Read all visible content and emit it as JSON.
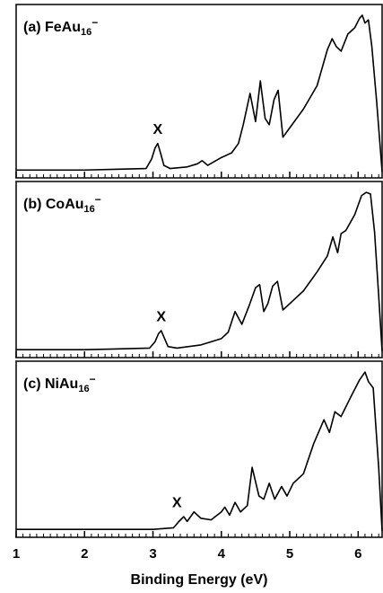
{
  "chart_data": [
    {
      "type": "line",
      "label": "(a) FeAu",
      "label_sub": "16",
      "label_sup": "−",
      "annotation": {
        "text": "X",
        "x": 3.07,
        "y": 0.24
      },
      "xlim": [
        1,
        6.35
      ],
      "ylim": [
        0,
        1.04
      ],
      "series": [
        {
          "color": "#000000",
          "x": [
            1.0,
            2.0,
            2.9,
            2.98,
            3.03,
            3.07,
            3.11,
            3.16,
            3.25,
            3.5,
            3.65,
            3.72,
            3.8,
            4.0,
            4.15,
            4.25,
            4.32,
            4.42,
            4.5,
            4.57,
            4.64,
            4.7,
            4.77,
            4.83,
            4.9,
            5.0,
            5.2,
            5.4,
            5.55,
            5.62,
            5.68,
            5.75,
            5.85,
            5.95,
            6.02,
            6.06,
            6.1,
            6.15,
            6.2,
            6.27,
            6.35
          ],
          "values": [
            0.01,
            0.01,
            0.02,
            0.08,
            0.15,
            0.18,
            0.12,
            0.04,
            0.02,
            0.03,
            0.05,
            0.07,
            0.04,
            0.09,
            0.12,
            0.18,
            0.3,
            0.5,
            0.32,
            0.58,
            0.34,
            0.3,
            0.46,
            0.52,
            0.22,
            0.28,
            0.4,
            0.55,
            0.78,
            0.85,
            0.8,
            0.77,
            0.88,
            0.92,
            0.98,
            1.0,
            0.95,
            0.97,
            0.8,
            0.45,
            0.0
          ]
        }
      ]
    },
    {
      "type": "line",
      "label": "(b) CoAu",
      "label_sub": "16",
      "label_sup": "−",
      "annotation": {
        "text": "X",
        "x": 3.12,
        "y": 0.19
      },
      "xlim": [
        1,
        6.35
      ],
      "ylim": [
        0,
        1.04
      ],
      "series": [
        {
          "color": "#000000",
          "x": [
            1.0,
            2.0,
            2.95,
            3.03,
            3.08,
            3.12,
            3.16,
            3.22,
            3.35,
            3.7,
            4.0,
            4.1,
            4.2,
            4.3,
            4.4,
            4.5,
            4.56,
            4.62,
            4.68,
            4.75,
            4.82,
            4.9,
            5.0,
            5.2,
            5.4,
            5.55,
            5.63,
            5.7,
            5.75,
            5.82,
            5.95,
            6.05,
            6.12,
            6.18,
            6.24,
            6.3,
            6.35
          ],
          "values": [
            0.01,
            0.01,
            0.02,
            0.06,
            0.11,
            0.13,
            0.09,
            0.03,
            0.02,
            0.04,
            0.08,
            0.12,
            0.25,
            0.17,
            0.28,
            0.4,
            0.42,
            0.25,
            0.3,
            0.41,
            0.44,
            0.26,
            0.3,
            0.38,
            0.5,
            0.6,
            0.72,
            0.62,
            0.74,
            0.76,
            0.86,
            0.98,
            1.0,
            0.99,
            0.75,
            0.35,
            0.0
          ]
        }
      ]
    },
    {
      "type": "line",
      "label": "(c) NiAu",
      "label_sub": "16",
      "label_sup": "−",
      "annotation": {
        "text": "X",
        "x": 3.35,
        "y": 0.15
      },
      "xlim": [
        1,
        6.35
      ],
      "ylim": [
        0,
        1.04
      ],
      "xlabel": "Binding Energy (eV)",
      "xticks": [
        1,
        2,
        3,
        4,
        5,
        6
      ],
      "minor_xticks": [
        1.1,
        1.2,
        1.3,
        1.4,
        1.5,
        1.6,
        1.7,
        1.8,
        1.9,
        2.1,
        2.2,
        2.3,
        2.4,
        2.5,
        2.6,
        2.7,
        2.8,
        2.9,
        3.1,
        3.2,
        3.3,
        3.4,
        3.5,
        3.6,
        3.7,
        3.8,
        3.9,
        4.1,
        4.2,
        4.3,
        4.4,
        4.5,
        4.6,
        4.7,
        4.8,
        4.9,
        5.1,
        5.2,
        5.3,
        5.4,
        5.5,
        5.6,
        5.7,
        5.8,
        5.9,
        6.1,
        6.2,
        6.3
      ],
      "series": [
        {
          "color": "#000000",
          "x": [
            1.0,
            2.0,
            3.0,
            3.3,
            3.38,
            3.45,
            3.5,
            3.6,
            3.7,
            3.85,
            4.0,
            4.05,
            4.12,
            4.2,
            4.28,
            4.38,
            4.45,
            4.55,
            4.62,
            4.7,
            4.78,
            4.88,
            4.96,
            5.05,
            5.2,
            5.35,
            5.5,
            5.58,
            5.66,
            5.75,
            5.9,
            6.02,
            6.1,
            6.15,
            6.22,
            6.3,
            6.35
          ],
          "values": [
            0.01,
            0.01,
            0.01,
            0.02,
            0.06,
            0.09,
            0.06,
            0.12,
            0.08,
            0.07,
            0.12,
            0.15,
            0.1,
            0.18,
            0.12,
            0.16,
            0.4,
            0.22,
            0.2,
            0.3,
            0.2,
            0.28,
            0.22,
            0.3,
            0.36,
            0.55,
            0.7,
            0.62,
            0.75,
            0.72,
            0.85,
            0.95,
            1.0,
            0.94,
            0.9,
            0.4,
            0.0
          ]
        }
      ]
    }
  ]
}
